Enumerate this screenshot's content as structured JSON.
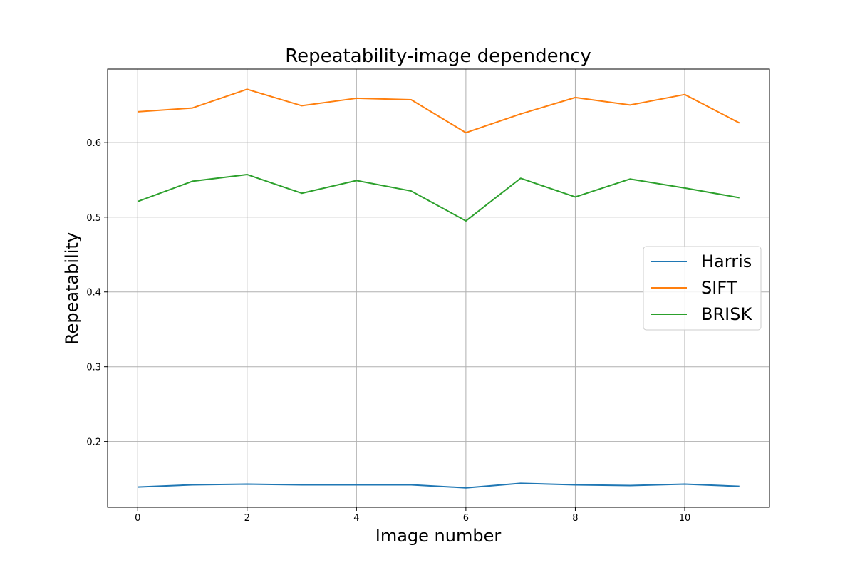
{
  "chart_data": {
    "type": "line",
    "title": "Repeatability-image dependency",
    "xlabel": "Image number",
    "ylabel": "Repeatability",
    "x": [
      0,
      1,
      2,
      3,
      4,
      5,
      6,
      7,
      8,
      9,
      10,
      11
    ],
    "xlim": [
      -0.55,
      11.55
    ],
    "ylim": [
      0.112,
      0.698
    ],
    "xticks": [
      0,
      2,
      4,
      6,
      8,
      10
    ],
    "xtick_labels": [
      "0",
      "2",
      "4",
      "6",
      "8",
      "10"
    ],
    "yticks": [
      0.2,
      0.3,
      0.4,
      0.5,
      0.6
    ],
    "ytick_labels": [
      "0.2",
      "0.3",
      "0.4",
      "0.5",
      "0.6"
    ],
    "grid": true,
    "legend_position": "center-right",
    "series": [
      {
        "name": "Harris",
        "color": "#1f77b4",
        "values": [
          0.139,
          0.142,
          0.143,
          0.142,
          0.142,
          0.142,
          0.138,
          0.144,
          0.142,
          0.141,
          0.143,
          0.14
        ]
      },
      {
        "name": "SIFT",
        "color": "#ff7f0e",
        "values": [
          0.641,
          0.646,
          0.671,
          0.649,
          0.659,
          0.657,
          0.613,
          0.638,
          0.66,
          0.65,
          0.664,
          0.626
        ]
      },
      {
        "name": "BRISK",
        "color": "#2ca02c",
        "values": [
          0.521,
          0.548,
          0.557,
          0.532,
          0.549,
          0.535,
          0.495,
          0.552,
          0.527,
          0.551,
          0.539,
          0.526
        ]
      }
    ]
  }
}
